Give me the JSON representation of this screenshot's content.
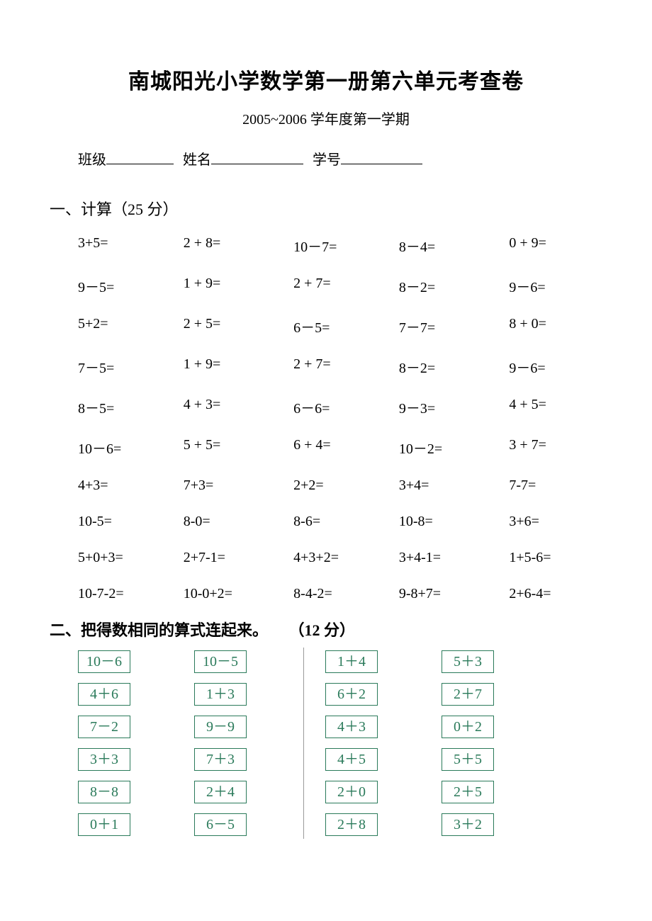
{
  "title": "南城阳光小学数学第一册第六单元考查卷",
  "subtitle": "2005~2006 学年度第一学期",
  "info": {
    "class_label": "班级",
    "name_label": "姓名",
    "id_label": "学号"
  },
  "section1": {
    "heading": "一、计算（25 分）",
    "rows": [
      [
        "3+5=",
        "2 + 8=",
        "10－7=",
        "8－4=",
        "0 + 9="
      ],
      [
        "9－5=",
        "1 + 9=",
        "2 + 7=",
        "8－2=",
        "9－6="
      ],
      [
        "5+2=",
        "2 + 5=",
        "6－5=",
        "7－7=",
        "8 + 0="
      ],
      [
        "7－5=",
        "1 + 9=",
        "2 + 7=",
        "8－2=",
        "9－6="
      ],
      [
        "8－5=",
        "4 + 3=",
        "6－6=",
        "9－3=",
        "4 + 5="
      ],
      [
        "10－6=",
        "5 + 5=",
        "6 + 4=",
        "10－2=",
        "3 + 7="
      ],
      [
        "4+3=",
        "7+3=",
        "2+2=",
        "3+4=",
        "7-7="
      ],
      [
        "10-5=",
        "8-0=",
        "8-6=",
        "10-8=",
        "3+6="
      ],
      [
        "5+0+3=",
        "2+7-1=",
        "4+3+2=",
        "3+4-1=",
        "1+5-6="
      ],
      [
        "10-7-2=",
        "10-0+2=",
        "8-4-2=",
        "9-8+7=",
        "2+6-4="
      ]
    ]
  },
  "section2": {
    "heading_main": "二、把得数相同的算式连起来。",
    "heading_pts": "（12 分）",
    "colA": [
      "10－6",
      "4＋6",
      "7－2",
      "3＋3",
      "8－8",
      "0＋1"
    ],
    "colB": [
      "10－5",
      "1＋3",
      "9－9",
      "7＋3",
      "2＋4",
      "6－5"
    ],
    "colC": [
      "1＋4",
      "6＋2",
      "4＋3",
      "4＋5",
      "2＋0",
      "2＋8"
    ],
    "colD": [
      "5＋3",
      "2＋7",
      "0＋2",
      "5＋5",
      "2＋5",
      "3＋2"
    ],
    "box_border_color": "#2a7a5a",
    "box_text_color": "#2a7a5a"
  }
}
